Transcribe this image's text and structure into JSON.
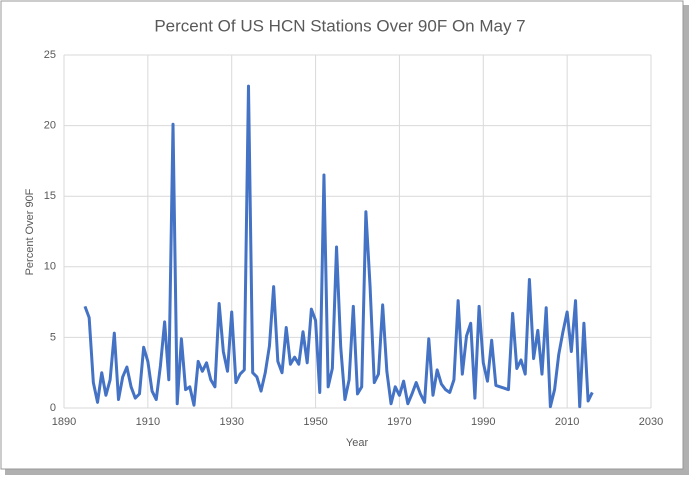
{
  "chart_data": {
    "type": "line",
    "title": "Percent Of US HCN Stations Over 90F On May 7",
    "x_label": "Year",
    "y_label": "Percent Over 90F",
    "x": [
      1895,
      1896,
      1897,
      1898,
      1899,
      1900,
      1901,
      1902,
      1903,
      1904,
      1905,
      1906,
      1907,
      1908,
      1909,
      1910,
      1911,
      1912,
      1913,
      1914,
      1915,
      1916,
      1917,
      1918,
      1919,
      1920,
      1921,
      1922,
      1923,
      1924,
      1925,
      1926,
      1927,
      1928,
      1929,
      1930,
      1931,
      1932,
      1933,
      1934,
      1935,
      1936,
      1937,
      1938,
      1939,
      1940,
      1941,
      1942,
      1943,
      1944,
      1945,
      1946,
      1947,
      1948,
      1949,
      1950,
      1951,
      1952,
      1953,
      1954,
      1955,
      1956,
      1957,
      1958,
      1959,
      1960,
      1961,
      1962,
      1963,
      1964,
      1965,
      1966,
      1967,
      1968,
      1969,
      1970,
      1971,
      1972,
      1973,
      1974,
      1975,
      1976,
      1977,
      1978,
      1979,
      1980,
      1981,
      1982,
      1983,
      1984,
      1985,
      1986,
      1987,
      1988,
      1989,
      1990,
      1991,
      1992,
      1993,
      1994,
      1995,
      1996,
      1997,
      1998,
      1999,
      2000,
      2001,
      2002,
      2003,
      2004,
      2005,
      2006,
      2007,
      2008,
      2009,
      2010,
      2011,
      2012,
      2013,
      2014,
      2015,
      2016
    ],
    "series": [
      {
        "name": "Percent Over 90F",
        "color": "#4472c4",
        "values": [
          7.2,
          6.4,
          1.8,
          0.4,
          2.5,
          0.9,
          2.0,
          5.3,
          0.6,
          2.2,
          2.9,
          1.5,
          0.7,
          1.0,
          4.3,
          3.3,
          1.2,
          0.6,
          3.0,
          6.1,
          2.0,
          20.1,
          0.3,
          4.9,
          1.3,
          1.5,
          0.2,
          3.3,
          2.6,
          3.2,
          2.0,
          1.5,
          7.4,
          4.0,
          2.6,
          6.8,
          1.8,
          2.4,
          2.7,
          22.8,
          2.5,
          2.2,
          1.2,
          2.5,
          4.4,
          8.6,
          3.3,
          2.5,
          5.7,
          3.1,
          3.6,
          3.1,
          5.4,
          3.2,
          7.0,
          6.2,
          1.1,
          16.5,
          1.5,
          2.8,
          11.4,
          4.3,
          0.6,
          2.0,
          7.2,
          1.0,
          1.5,
          13.9,
          8.6,
          1.8,
          2.4,
          7.3,
          2.6,
          0.3,
          1.5,
          0.9,
          1.9,
          0.3,
          1.0,
          1.8,
          1.0,
          0.4,
          4.9,
          0.9,
          2.7,
          1.7,
          1.3,
          1.1,
          2.0,
          7.6,
          2.4,
          5.1,
          6.0,
          0.7,
          7.2,
          3.2,
          1.9,
          4.8,
          1.6,
          1.5,
          1.4,
          1.3,
          6.7,
          2.8,
          3.4,
          2.4,
          9.1,
          3.5,
          5.5,
          2.4,
          7.1,
          0.1,
          1.3,
          3.8,
          5.4,
          6.8,
          4.0,
          7.6,
          0.1,
          6.0,
          0.5,
          1.1
        ]
      }
    ],
    "xlim": [
      1890,
      2030
    ],
    "xticks": [
      1890,
      1910,
      1930,
      1950,
      1970,
      1990,
      2010,
      2030
    ],
    "ylim": [
      0,
      25
    ],
    "yticks": [
      0,
      5,
      10,
      15,
      20,
      25
    ],
    "grid": true
  }
}
